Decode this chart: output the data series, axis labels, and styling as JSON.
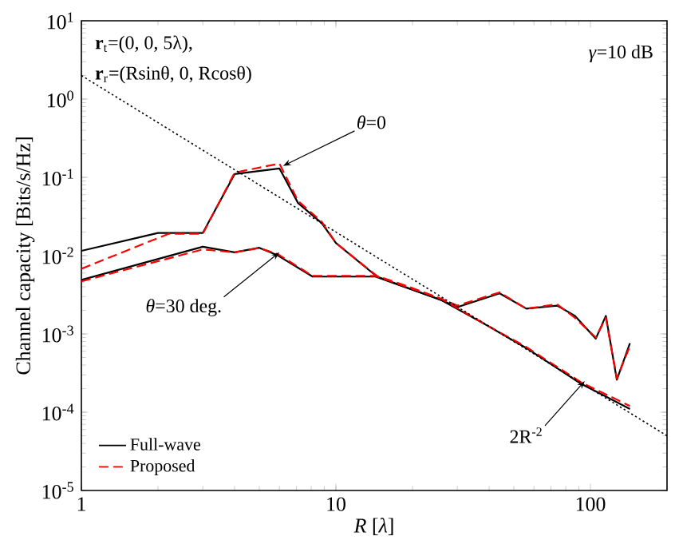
{
  "chart_data": {
    "type": "line",
    "xlabel": "*R* [*λ*]",
    "ylabel": "Channel capacity [Bits/s/Hz]",
    "log": "xy",
    "xlim": [
      1,
      200
    ],
    "ylim": [
      1e-05,
      10
    ],
    "xticks": [
      1,
      10,
      100
    ],
    "yticks": [
      {
        "value": 1e-05,
        "label": "10$^{-5}$"
      },
      {
        "value": 0.0001,
        "label": "10$^{-4}$"
      },
      {
        "value": 0.001,
        "label": "10$^{-3}$"
      },
      {
        "value": 0.01,
        "label": "10$^{-2}$"
      },
      {
        "value": 0.1,
        "label": "10$^{-1}$"
      },
      {
        "value": 1,
        "label": "10$^{0}$"
      },
      {
        "value": 10,
        "label": "10$^{1}$"
      }
    ],
    "legend": "bottom left",
    "grid": false,
    "marker": "none",
    "series": [
      {
        "name": "Full-wave",
        "color": "#000000",
        "line_style": "solid",
        "x": [
          1,
          2,
          3,
          4,
          6,
          7.1,
          8.8,
          10,
          14.5,
          19,
          26,
          30,
          44,
          56,
          74,
          87,
          105,
          115,
          127,
          143
        ],
        "values": [
          0.0115,
          0.0195,
          0.0195,
          0.11,
          0.13,
          0.047,
          0.026,
          0.0145,
          0.0054,
          0.0039,
          0.0027,
          0.0022,
          0.0033,
          0.0021,
          0.0023,
          0.0017,
          0.00087,
          0.0017,
          0.00026,
          0.00076
        ]
      },
      {
        "name": "Proposed",
        "color": "#ff0000",
        "line_style": "dashed",
        "x": [
          1,
          2.2,
          3,
          4,
          6,
          7.1,
          8.8,
          10,
          14.5,
          19,
          26,
          30,
          44,
          56,
          74,
          87,
          105,
          115,
          127,
          143
        ],
        "values": [
          0.0068,
          0.019,
          0.019,
          0.115,
          0.15,
          0.05,
          0.027,
          0.0145,
          0.0055,
          0.0041,
          0.0028,
          0.0023,
          0.0034,
          0.0021,
          0.0024,
          0.0016,
          0.0009,
          0.0016,
          0.00027,
          0.0007
        ]
      },
      {
        "color": "#000000",
        "line_style": "solid",
        "x": [
          1,
          3,
          4,
          5,
          5.9,
          8.1,
          14.3,
          26,
          39,
          56,
          92,
          143
        ],
        "values": [
          0.0049,
          0.013,
          0.011,
          0.0126,
          0.0101,
          0.0054,
          0.0054,
          0.0027,
          0.0013,
          0.00066,
          0.00023,
          0.00011
        ]
      },
      {
        "color": "#ff0000",
        "line_style": "dashed",
        "x": [
          1,
          3,
          4,
          5,
          5.9,
          8.1,
          14.3,
          26,
          39,
          56,
          92,
          143
        ],
        "values": [
          0.0047,
          0.012,
          0.011,
          0.0125,
          0.0105,
          0.0055,
          0.0055,
          0.0028,
          0.0013,
          0.00068,
          0.00024,
          0.00012
        ]
      },
      {
        "color": "#000000",
        "line_style": "dotted",
        "x": [
          1,
          200
        ],
        "values": [
          2,
          5e-05
        ]
      }
    ],
    "annotations": [
      "**r**$_{t}$=(0, 0, 5λ),",
      "**r**$_{r}$=(Rsinθ, 0, Rcosθ)",
      "*γ*=10 dB",
      {
        "text": "*θ*=0",
        "x": 6.2,
        "y": 0.14
      },
      {
        "text": "*θ*=30 deg.",
        "x": 6,
        "y": 0.011
      },
      {
        "text": "2R$^{-2}$",
        "x": 95,
        "y": 0.00025
      }
    ]
  }
}
